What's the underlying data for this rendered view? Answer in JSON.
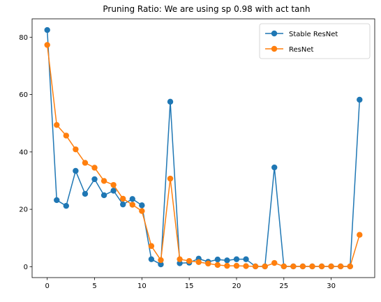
{
  "chart_data": {
    "type": "line",
    "title": "Pruning Ratio: We are using sp 0.98 with act tanh",
    "xlabel": "",
    "ylabel": "",
    "xlim": [
      -1.6,
      34.6
    ],
    "ylim": [
      -3.8,
      86.4
    ],
    "x_ticks": [
      0,
      5,
      10,
      15,
      20,
      25,
      30
    ],
    "y_ticks": [
      0,
      20,
      40,
      60,
      80
    ],
    "grid": false,
    "legend_position": "top-right",
    "x": [
      0,
      1,
      2,
      3,
      4,
      5,
      6,
      7,
      8,
      9,
      10,
      11,
      12,
      13,
      14,
      15,
      16,
      17,
      18,
      19,
      20,
      21,
      22,
      23,
      24,
      25,
      26,
      27,
      28,
      29,
      30,
      31,
      32,
      33
    ],
    "series": [
      {
        "name": "Stable ResNet",
        "color": "#1f77b4",
        "values": [
          82.5,
          23.2,
          21.2,
          33.4,
          25.4,
          30.5,
          24.9,
          26.5,
          21.7,
          23.6,
          21.4,
          2.6,
          0.8,
          57.5,
          1.2,
          1.4,
          2.8,
          1.7,
          2.5,
          2.2,
          2.6,
          2.6,
          0.1,
          0.1,
          34.6,
          0.1,
          0.1,
          0.1,
          0.1,
          0.1,
          0.1,
          0.1,
          0.1,
          58.2
        ]
      },
      {
        "name": "ResNet",
        "color": "#ff7f0e",
        "values": [
          77.3,
          49.4,
          45.7,
          40.9,
          36.2,
          34.5,
          29.9,
          28.5,
          23.7,
          21.6,
          19.4,
          7.2,
          2.3,
          30.7,
          2.6,
          2.0,
          1.6,
          1.1,
          0.6,
          0.3,
          0.3,
          0.2,
          0.1,
          0.1,
          1.3,
          0.1,
          0.1,
          0.1,
          0.1,
          0.1,
          0.1,
          0.1,
          0.1,
          11.1
        ]
      }
    ]
  }
}
